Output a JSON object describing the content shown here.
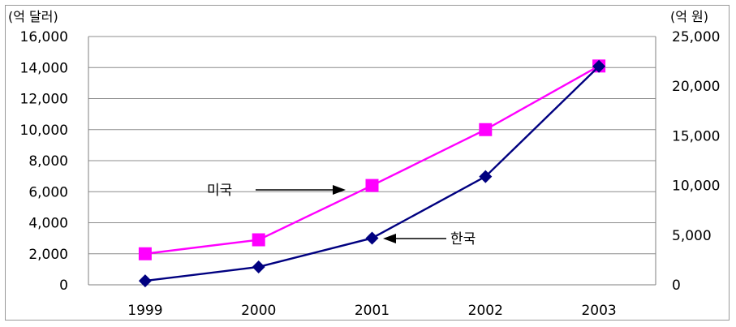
{
  "chart_data": {
    "type": "line",
    "categories": [
      "1999",
      "2000",
      "2001",
      "2002",
      "2003"
    ],
    "left_axis": {
      "unit_label": "(억 달러)",
      "ylim": [
        0,
        16000
      ],
      "ticks": [
        0,
        2000,
        4000,
        6000,
        8000,
        10000,
        12000,
        14000,
        16000
      ],
      "tick_labels": [
        "0",
        "2,000",
        "4,000",
        "6,000",
        "8,000",
        "10,000",
        "12,000",
        "14,000",
        "16,000"
      ]
    },
    "right_axis": {
      "unit_label": "(억 원)",
      "ylim": [
        0,
        25000
      ],
      "ticks": [
        0,
        5000,
        10000,
        15000,
        20000,
        25000
      ],
      "tick_labels": [
        "0",
        "5,000",
        "10,000",
        "15,000",
        "20,000",
        "25,000"
      ]
    },
    "series": [
      {
        "name": "미국",
        "axis": "left",
        "color": "#ff00ff",
        "marker": "square",
        "values": [
          2000,
          2900,
          6400,
          10000,
          14100
        ]
      },
      {
        "name": "한국",
        "axis": "right",
        "color": "#000080",
        "marker": "diamond",
        "values": [
          400,
          1800,
          4700,
          10900,
          22000
        ]
      }
    ],
    "grid": true,
    "legend": "arrow annotations"
  }
}
